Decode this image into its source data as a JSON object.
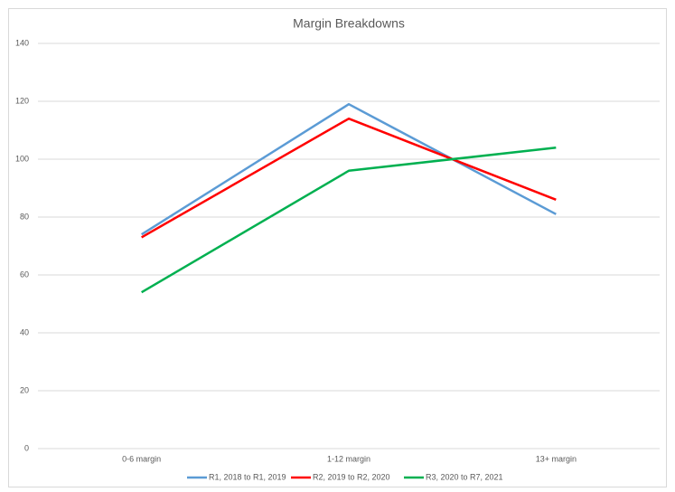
{
  "chart_data": {
    "type": "line",
    "title": "Margin Breakdowns",
    "categories": [
      "0-6 margin",
      "1-12 margin",
      "13+ margin"
    ],
    "series": [
      {
        "name": "R1, 2018 to R1, 2019",
        "color": "#5b9bd5",
        "values": [
          74,
          119,
          81
        ]
      },
      {
        "name": "R2, 2019 to R2, 2020",
        "color": "#ff0000",
        "values": [
          73,
          114,
          86
        ]
      },
      {
        "name": "R3, 2020 to R7, 2021",
        "color": "#00b050",
        "values": [
          54,
          96,
          104
        ]
      }
    ],
    "ylim": [
      0,
      140
    ],
    "yticks": [
      0,
      20,
      40,
      60,
      80,
      100,
      120,
      140
    ],
    "grid": true,
    "legend": "bottom"
  }
}
